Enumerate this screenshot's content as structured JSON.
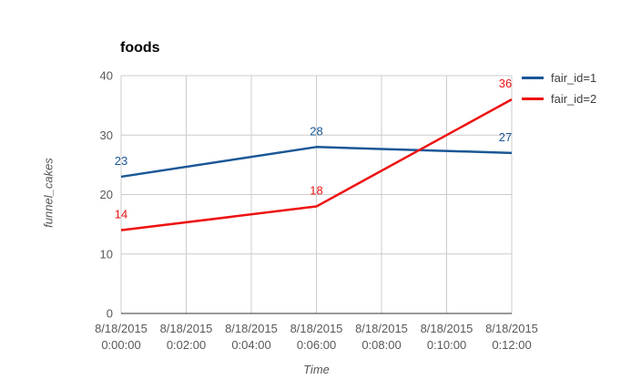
{
  "chart_data": {
    "type": "line",
    "title": "foods",
    "xlabel": "Time",
    "ylabel": "funnel_cakes",
    "ylim": [
      0,
      40
    ],
    "yticks": [
      0,
      10,
      20,
      30,
      40
    ],
    "xticks": [
      {
        "date": "8/18/2015",
        "time": "0:00:00"
      },
      {
        "date": "8/18/2015",
        "time": "0:02:00"
      },
      {
        "date": "8/18/2015",
        "time": "0:04:00"
      },
      {
        "date": "8/18/2015",
        "time": "0:06:00"
      },
      {
        "date": "8/18/2015",
        "time": "0:08:00"
      },
      {
        "date": "8/18/2015",
        "time": "0:10:00"
      },
      {
        "date": "8/18/2015",
        "time": "0:12:00"
      }
    ],
    "grid": true,
    "legend_position": "top-right",
    "legend_entries": [
      "fair_id=1",
      "fair_id=2"
    ],
    "series": [
      {
        "name": "fair_id=1",
        "color": "#1a5796",
        "points": [
          {
            "x": "0:00:00",
            "y": 23
          },
          {
            "x": "0:06:00",
            "y": 28
          },
          {
            "x": "0:12:00",
            "y": 27
          }
        ]
      },
      {
        "name": "fair_id=2",
        "color": "#ee1111",
        "points": [
          {
            "x": "0:00:00",
            "y": 14
          },
          {
            "x": "0:06:00",
            "y": 18
          },
          {
            "x": "0:12:00",
            "y": 36
          }
        ]
      }
    ],
    "colors": {
      "grid": "#cccccc",
      "x_axis_line": "#333333",
      "y_axis_line": "#cccccc",
      "tick_text": "#595959",
      "axis_title_text": "#555555",
      "legend_text": "#3d3d3d",
      "title_text": "#000000",
      "background": "#ffffff"
    }
  }
}
